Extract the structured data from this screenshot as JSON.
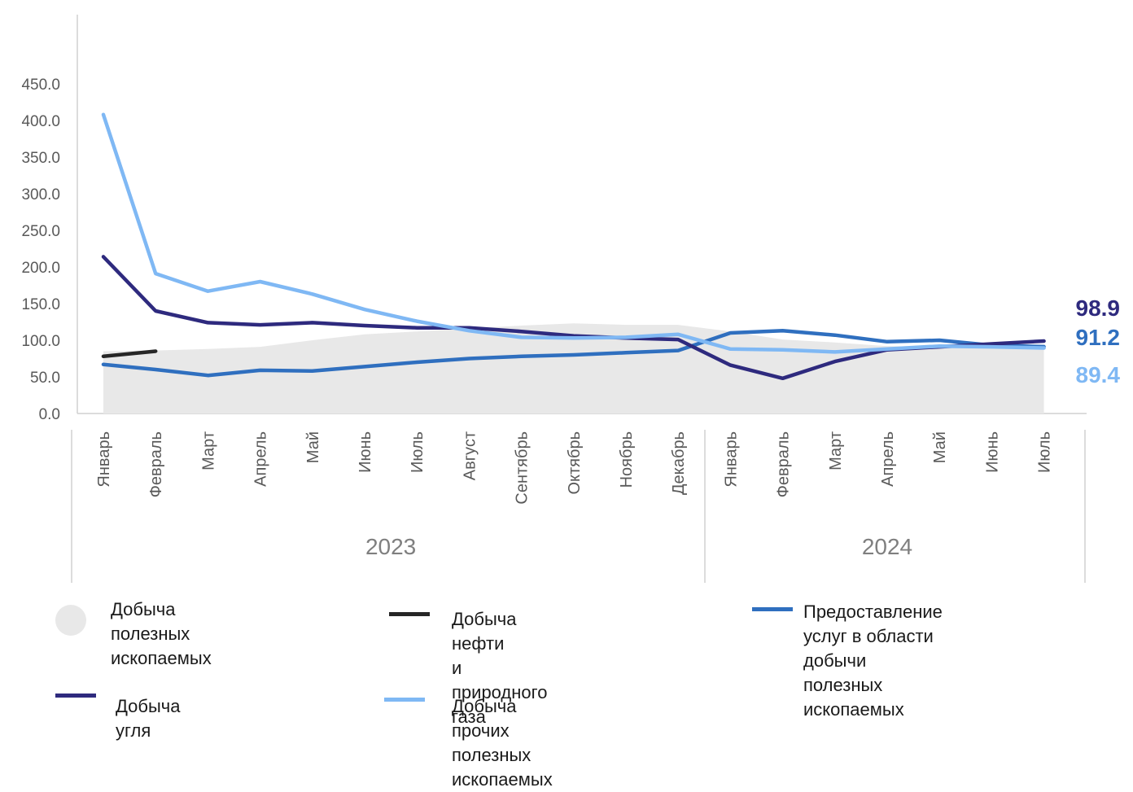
{
  "chart_data": {
    "type": "line",
    "ylim": [
      0,
      450
    ],
    "yticks": [
      "0.0",
      "50.0",
      "100.0",
      "150.0",
      "200.0",
      "250.0",
      "300.0",
      "350.0",
      "400.0",
      "450.0"
    ],
    "categories": [
      "Январь",
      "Февраль",
      "Март",
      "Апрель",
      "Май",
      "Июнь",
      "Июль",
      "Август",
      "Сентябрь",
      "Октябрь",
      "Ноябрь",
      "Декабрь",
      "Январь",
      "Февраль",
      "Март",
      "Апрель",
      "Май",
      "Июнь",
      "Июль"
    ],
    "years": [
      {
        "label": "2023",
        "start": 0,
        "end": 11
      },
      {
        "label": "2024",
        "start": 12,
        "end": 18
      }
    ],
    "series": [
      {
        "key": "mining",
        "kind": "area",
        "color": "#e8e8e8",
        "values": [
          85,
          86,
          88,
          91,
          100,
          108,
          112,
          116,
          120,
          123,
          121,
          121,
          112,
          101,
          97,
          92,
          91,
          91,
          91
        ]
      },
      {
        "key": "oil_gas",
        "kind": "line",
        "color": "#262626",
        "values": [
          78,
          85,
          null,
          null,
          null,
          null,
          null,
          null,
          null,
          null,
          null,
          null,
          null,
          null,
          null,
          null,
          null,
          null,
          null
        ]
      },
      {
        "key": "services",
        "kind": "line",
        "color": "#2f6fbf",
        "values": [
          67,
          60,
          52,
          59,
          58,
          64,
          70,
          75,
          78,
          80,
          83,
          86,
          110,
          113,
          107,
          98,
          100,
          93,
          91.2
        ]
      },
      {
        "key": "coal",
        "kind": "line",
        "color": "#2e2a7e",
        "values": [
          214,
          140,
          124,
          121,
          124,
          120,
          117,
          117,
          112,
          106,
          103,
          101,
          66,
          48,
          71,
          87,
          91,
          95,
          98.9
        ]
      },
      {
        "key": "other",
        "kind": "line",
        "color": "#7fb8f4",
        "values": [
          408,
          191,
          167,
          180,
          163,
          142,
          126,
          113,
          104,
          103,
          104,
          108,
          88,
          87,
          84,
          88,
          92,
          91,
          89.4
        ]
      }
    ],
    "end_labels": [
      {
        "series": "coal",
        "text": "98.9",
        "color": "#2e2a7e"
      },
      {
        "series": "services",
        "text": "91.2",
        "color": "#2f6fbf"
      },
      {
        "series": "other",
        "text": "89.4",
        "color": "#7fb8f4"
      }
    ]
  },
  "legend": [
    {
      "key": "mining",
      "label": "Добыча полезных\nископаемых",
      "swatch": "dot",
      "color": "#e8e8e8"
    },
    {
      "key": "oil_gas",
      "label": "Добыча нефти\nи природного газа",
      "swatch": "line",
      "color": "#262626"
    },
    {
      "key": "services",
      "label": "Предоставление услуг в области\nдобычи полезных ископаемых",
      "swatch": "line",
      "color": "#2f6fbf"
    },
    {
      "key": "coal",
      "label": "Добыча угля",
      "swatch": "line",
      "color": "#2e2a7e"
    },
    {
      "key": "other",
      "label": "Добыча прочих полезных\nископаемых",
      "swatch": "line",
      "color": "#7fb8f4"
    }
  ]
}
